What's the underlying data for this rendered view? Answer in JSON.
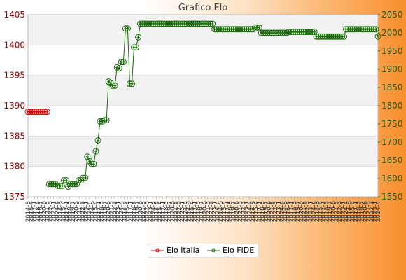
{
  "chart_data": {
    "type": "line",
    "title": "Grafico Elo",
    "colors": {
      "italia": "#e00000",
      "fide": "#1a6b0a"
    },
    "y_left": {
      "ylim": [
        1375,
        1405
      ],
      "ticks": [
        1375,
        1380,
        1385,
        1390,
        1395,
        1400,
        1405
      ]
    },
    "y_right": {
      "ylim": [
        1550,
        2050
      ],
      "ticks": [
        1550,
        1600,
        1650,
        1700,
        1750,
        1800,
        1850,
        1900,
        1950,
        2000,
        2050
      ]
    },
    "x_tick_labels": [
      "2014-8",
      "2015-4",
      "2017-1",
      "2018-5",
      "2019-7",
      "2020-6",
      "2021-5",
      "2022-3",
      "2023-1",
      "2024-4"
    ],
    "grid": true,
    "legend_position": "bottom",
    "series": [
      {
        "name": "Elo Italia",
        "axis": "left",
        "values": [
          1389,
          1389,
          1389,
          1389,
          1389,
          1389,
          1389,
          1389,
          1389,
          1389
        ]
      },
      {
        "name": "Elo FIDE",
        "axis": "right",
        "values": [
          1585,
          1585,
          1585,
          1585,
          1580,
          1580,
          1580,
          1595,
          1595,
          1578,
          1585,
          1585,
          1585,
          1585,
          1595,
          1595,
          1602,
          1602,
          1660,
          1648,
          1640,
          1640,
          1675,
          1705,
          1757,
          1757,
          1760,
          1760,
          1866,
          1862,
          1855,
          1855,
          1905,
          1903,
          1920,
          1920,
          2012,
          2012,
          1860,
          1860,
          1960,
          1960,
          1988,
          2025,
          2025,
          2025,
          2025,
          2025,
          2025,
          2025,
          2025,
          2025,
          2025,
          2025,
          2025,
          2025,
          2025,
          2025,
          2025,
          2025,
          2025,
          2025,
          2025,
          2025,
          2025,
          2025,
          2025,
          2025,
          2025,
          2025,
          2025,
          2025,
          2025,
          2025,
          2025,
          2025,
          2025,
          2025,
          2010,
          2010,
          2010,
          2010,
          2010,
          2010,
          2010,
          2010,
          2010,
          2010,
          2010,
          2010,
          2010,
          2010,
          2010,
          2010,
          2010,
          2010,
          2010,
          2015,
          2015,
          2015,
          2000,
          2000,
          2000,
          2000,
          2000,
          2000,
          2000,
          2000,
          2000,
          2000,
          2000,
          2000,
          2000,
          2003,
          2003,
          2003,
          2003,
          2003,
          2003,
          2003,
          2003,
          2003,
          2003,
          2003,
          2003,
          2003,
          1990,
          1990,
          1990,
          1990,
          1990,
          1990,
          1990,
          1990,
          1990,
          1990,
          1990,
          1990,
          1990,
          1990,
          2010,
          2010,
          2010,
          2010,
          2010,
          2010,
          2010,
          2010,
          2010,
          2010,
          2010,
          2010,
          2010,
          2010,
          2010,
          1990
        ]
      }
    ]
  },
  "legend": {
    "item_1": "Elo Italia",
    "item_2": "Elo FIDE"
  }
}
